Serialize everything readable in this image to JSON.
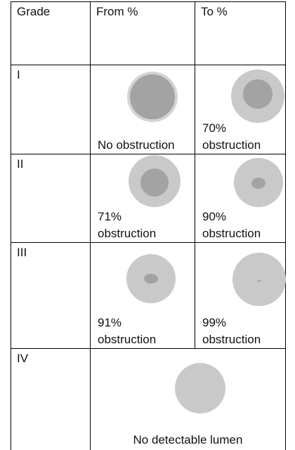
{
  "table": {
    "header": [
      "Grade",
      "From %",
      "To %"
    ],
    "rows": [
      {
        "grade": "I",
        "from": "No obstruction",
        "to": "70% obstruction"
      },
      {
        "grade": "II",
        "from": "71% obstruction",
        "to": "90% obstruction"
      },
      {
        "grade": "III",
        "from": "91% obstruction",
        "to": "99% obstruction"
      },
      {
        "grade": "IV",
        "span": "No detectable lumen"
      }
    ]
  }
}
